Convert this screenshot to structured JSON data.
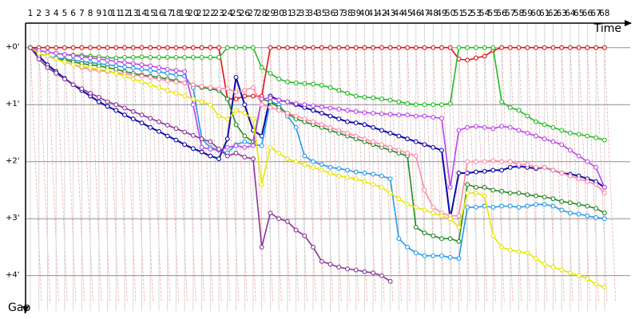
{
  "chart_data": {
    "type": "line",
    "x_axis_label": "Time",
    "y_axis_label": "Gap",
    "x": [
      1,
      2,
      3,
      4,
      5,
      6,
      7,
      8,
      9,
      10,
      11,
      12,
      13,
      14,
      15,
      16,
      17,
      18,
      19,
      20,
      21,
      22,
      23,
      24,
      25,
      26,
      27,
      28,
      29,
      30,
      31,
      32,
      33,
      34,
      35,
      36,
      37,
      38,
      39,
      40,
      41,
      42,
      43,
      44,
      45,
      46,
      47,
      48,
      49,
      50,
      51,
      52,
      53,
      54,
      55,
      56,
      57,
      58,
      59,
      60,
      61,
      62,
      63,
      64,
      65,
      66,
      67,
      68
    ],
    "xlim": [
      0.44,
      71.0
    ],
    "ylim": [
      -0.43,
      4.62
    ],
    "y_inverted": true,
    "yticks": [
      {
        "value": 0,
        "label": "+0'"
      },
      {
        "value": 1,
        "label": "+1'"
      },
      {
        "value": 2,
        "label": "+2'"
      },
      {
        "value": 3,
        "label": "+3'"
      },
      {
        "value": 4,
        "label": "+4'"
      }
    ],
    "grid": true,
    "series": [
      {
        "name": "Red",
        "color": "#e01010",
        "values": [
          0,
          0,
          0,
          0,
          0,
          0,
          0,
          0,
          0,
          0,
          0,
          0,
          0,
          0,
          0,
          0,
          0,
          0,
          0,
          0,
          0,
          0,
          0,
          0.9,
          0.9,
          0.85,
          0.85,
          0.85,
          0,
          0,
          0,
          0,
          0,
          0,
          0,
          0,
          0,
          0,
          0,
          0,
          0,
          0,
          0,
          0,
          0,
          0,
          0,
          0,
          0,
          0,
          0.2,
          0.22,
          0.18,
          0.15,
          0.05,
          0,
          0,
          0,
          0,
          0,
          0,
          0,
          0,
          0,
          0,
          0,
          0,
          0
        ]
      },
      {
        "name": "Green",
        "color": "#22bb22",
        "values": [
          0,
          0.05,
          0.08,
          0.1,
          0.12,
          0.13,
          0.14,
          0.15,
          0.16,
          0.18,
          0.18,
          0.17,
          0.17,
          0.16,
          0.17,
          0.17,
          0.17,
          0.17,
          0.17,
          0.17,
          0.17,
          0.17,
          0.17,
          0,
          0,
          0,
          0,
          0.35,
          0.45,
          0.55,
          0.6,
          0.62,
          0.63,
          0.64,
          0.66,
          0.7,
          0.75,
          0.8,
          0.85,
          0.87,
          0.88,
          0.9,
          0.92,
          0.95,
          0.98,
          1.0,
          1.0,
          1.0,
          1.0,
          0.98,
          0,
          0,
          0,
          0,
          0,
          0.95,
          1.05,
          1.1,
          1.2,
          1.3,
          1.35,
          1.4,
          1.45,
          1.5,
          1.52,
          1.55,
          1.58,
          1.62
        ]
      },
      {
        "name": "Navy",
        "color": "#0a0aa8",
        "values": [
          0,
          0.15,
          0.3,
          0.42,
          0.54,
          0.65,
          0.75,
          0.85,
          0.95,
          1.03,
          1.1,
          1.18,
          1.25,
          1.32,
          1.4,
          1.47,
          1.55,
          1.62,
          1.7,
          1.77,
          1.83,
          1.9,
          1.95,
          1.6,
          0.52,
          1.0,
          1.45,
          1.55,
          0.85,
          0.92,
          0.95,
          1.0,
          1.05,
          1.1,
          1.15,
          1.2,
          1.25,
          1.3,
          1.32,
          1.35,
          1.4,
          1.45,
          1.5,
          1.55,
          1.6,
          1.65,
          1.7,
          1.75,
          1.8,
          3.0,
          2.2,
          2.2,
          2.18,
          2.17,
          2.15,
          2.15,
          2.1,
          2.08,
          2.1,
          2.12,
          2.1,
          2.15,
          2.2,
          2.22,
          2.25,
          2.3,
          2.35,
          2.45
        ]
      },
      {
        "name": "Blue",
        "color": "#2299ee",
        "values": [
          0,
          0.1,
          0.15,
          0.18,
          0.2,
          0.22,
          0.24,
          0.26,
          0.28,
          0.3,
          0.32,
          0.34,
          0.36,
          0.38,
          0.4,
          0.42,
          0.45,
          0.48,
          0.5,
          0.7,
          1.6,
          1.75,
          1.8,
          1.85,
          1.7,
          1.65,
          1.7,
          1.72,
          0.95,
          1.0,
          1.2,
          1.4,
          1.9,
          2.0,
          2.05,
          2.1,
          2.12,
          2.15,
          2.18,
          2.2,
          2.22,
          2.25,
          2.3,
          3.35,
          3.5,
          3.6,
          3.65,
          3.65,
          3.65,
          3.68,
          3.7,
          2.8,
          2.8,
          2.78,
          2.8,
          2.78,
          2.78,
          2.8,
          2.78,
          2.75,
          2.75,
          2.78,
          2.85,
          2.9,
          2.92,
          2.95,
          2.98,
          3.0
        ]
      },
      {
        "name": "Dark Green",
        "color": "#228822",
        "values": [
          0,
          0.1,
          0.15,
          0.2,
          0.22,
          0.25,
          0.28,
          0.3,
          0.32,
          0.35,
          0.38,
          0.42,
          0.45,
          0.48,
          0.5,
          0.52,
          0.55,
          0.58,
          0.62,
          0.65,
          0.7,
          0.72,
          0.75,
          0.9,
          1.35,
          1.55,
          1.65,
          0.9,
          0.95,
          1.05,
          1.15,
          1.25,
          1.3,
          1.35,
          1.4,
          1.45,
          1.5,
          1.55,
          1.6,
          1.65,
          1.7,
          1.75,
          1.8,
          1.85,
          1.9,
          3.15,
          3.25,
          3.3,
          3.35,
          3.35,
          3.4,
          2.4,
          2.45,
          2.45,
          2.5,
          2.52,
          2.55,
          2.55,
          2.58,
          2.6,
          2.62,
          2.65,
          2.7,
          2.72,
          2.75,
          2.78,
          2.82,
          2.9
        ]
      },
      {
        "name": "Violet",
        "color": "#bb44ee",
        "values": [
          0,
          0.05,
          0.08,
          0.1,
          0.12,
          0.14,
          0.16,
          0.18,
          0.2,
          0.22,
          0.24,
          0.26,
          0.28,
          0.3,
          0.32,
          0.35,
          0.38,
          0.4,
          0.42,
          1.0,
          1.75,
          1.78,
          1.8,
          1.75,
          1.72,
          1.75,
          1.72,
          0.9,
          0.88,
          0.92,
          0.95,
          0.98,
          1.0,
          1.02,
          1.04,
          1.06,
          1.08,
          1.1,
          1.12,
          1.14,
          1.15,
          1.16,
          1.17,
          1.18,
          1.18,
          1.2,
          1.2,
          1.22,
          1.24,
          2.45,
          1.45,
          1.4,
          1.38,
          1.4,
          1.42,
          1.38,
          1.4,
          1.45,
          1.5,
          1.55,
          1.6,
          1.65,
          1.7,
          1.8,
          1.9,
          2.0,
          2.1,
          2.45
        ]
      },
      {
        "name": "Pink",
        "color": "#ff88aa",
        "values": [
          0,
          0.1,
          0.15,
          0.2,
          0.25,
          0.3,
          0.35,
          0.38,
          0.4,
          0.42,
          0.44,
          0.46,
          0.48,
          0.5,
          0.52,
          0.55,
          0.58,
          0.6,
          0.62,
          0.65,
          0.68,
          0.7,
          0.72,
          0.72,
          0.78,
          0.75,
          0.7,
          1.0,
          1.05,
          1.1,
          1.15,
          1.2,
          1.25,
          1.3,
          1.35,
          1.4,
          1.45,
          1.5,
          1.55,
          1.6,
          1.65,
          1.7,
          1.75,
          1.8,
          1.85,
          1.9,
          2.5,
          2.8,
          2.9,
          2.95,
          2.95,
          2.0,
          2.0,
          2.0,
          1.98,
          2.0,
          2.0,
          2.05,
          2.05,
          2.1,
          2.1,
          2.15,
          2.2,
          2.25,
          2.3,
          2.35,
          2.4,
          2.55
        ]
      },
      {
        "name": "Yellow",
        "color": "#e6e600",
        "values": [
          0,
          0.1,
          0.15,
          0.2,
          0.25,
          0.3,
          0.33,
          0.35,
          0.38,
          0.4,
          0.45,
          0.5,
          0.55,
          0.6,
          0.65,
          0.7,
          0.75,
          0.8,
          0.85,
          0.9,
          0.95,
          1.0,
          1.2,
          1.25,
          1.1,
          1.15,
          1.25,
          2.4,
          1.75,
          1.85,
          1.95,
          2.0,
          2.05,
          2.1,
          2.15,
          2.2,
          2.25,
          2.28,
          2.3,
          2.35,
          2.4,
          2.45,
          2.55,
          2.65,
          2.75,
          2.8,
          2.85,
          2.9,
          2.95,
          3.0,
          3.15,
          2.55,
          2.55,
          2.6,
          3.3,
          3.5,
          3.55,
          3.58,
          3.6,
          3.7,
          3.8,
          3.85,
          3.9,
          3.95,
          4.0,
          4.05,
          4.15,
          4.2
        ]
      },
      {
        "name": "Purple",
        "color": "#883399",
        "values": [
          0,
          0.2,
          0.35,
          0.45,
          0.55,
          0.65,
          0.72,
          0.8,
          0.87,
          0.95,
          1.0,
          1.06,
          1.12,
          1.18,
          1.24,
          1.3,
          1.36,
          1.42,
          1.48,
          1.54,
          1.6,
          1.65,
          1.78,
          1.9,
          1.85,
          1.92,
          1.95,
          3.5,
          2.9,
          3.0,
          3.05,
          3.2,
          3.3,
          3.5,
          3.75,
          3.8,
          3.85,
          3.88,
          3.9,
          3.93,
          3.95,
          4.0,
          4.1,
          null,
          null,
          null,
          null,
          null,
          null,
          null,
          null,
          null,
          null,
          null,
          null,
          null,
          null,
          null,
          null,
          null,
          null,
          null,
          null,
          null,
          null,
          null,
          null,
          null
        ]
      }
    ]
  }
}
